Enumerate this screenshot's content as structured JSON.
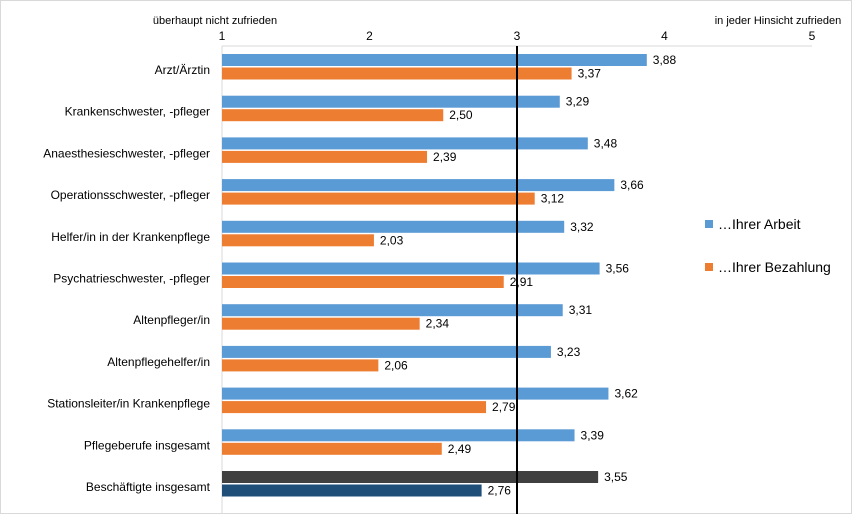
{
  "chart_data": {
    "type": "bar",
    "orientation": "horizontal",
    "scale_left_label": "überhaupt nicht zufrieden",
    "scale_right_label": "in jeder Hinsicht zufrieden",
    "xlim": [
      1,
      5
    ],
    "ticks": [
      "1",
      "2",
      "3",
      "4",
      "5"
    ],
    "reference_line": 3,
    "categories": [
      "Arzt/Ärztin",
      "Krankenschwester, -pfleger",
      "Anaesthesieschwester, -pfleger",
      "Operationsschwester, -pfleger",
      "Helfer/in in der Krankenpflege",
      "Psychatrieschwester, -pfleger",
      "Altenpfleger/in",
      "Altenpflegehelfer/in",
      "Stationsleiter/in Krankenpflege",
      "Pflegeberufe insgesamt",
      "Beschäftigte insgesamt"
    ],
    "series": [
      {
        "name": "…Ihrer Arbeit",
        "color": "#5b9bd5",
        "values": [
          3.88,
          3.29,
          3.48,
          3.66,
          3.32,
          3.56,
          3.31,
          3.23,
          3.62,
          3.39,
          3.55
        ],
        "labels": [
          "3,88",
          "3,29",
          "3,48",
          "3,66",
          "3,32",
          "3,56",
          "3,31",
          "3,23",
          "3,62",
          "3,39",
          "3,55"
        ]
      },
      {
        "name": "…Ihrer Bezahlung",
        "color": "#ed7d31",
        "values": [
          3.37,
          2.5,
          2.39,
          3.12,
          2.03,
          2.91,
          2.34,
          2.06,
          2.79,
          2.49,
          2.76
        ],
        "labels": [
          "3,37",
          "2,50",
          "2,39",
          "3,12",
          "2,03",
          "2,91",
          "2,34",
          "2,06",
          "2,79",
          "2,49",
          "2,76"
        ]
      }
    ],
    "highlight": {
      "category": "Beschäftigte insgesamt",
      "colors": [
        "#404040",
        "#1f4e79"
      ]
    },
    "legend": "right",
    "grid": false
  }
}
